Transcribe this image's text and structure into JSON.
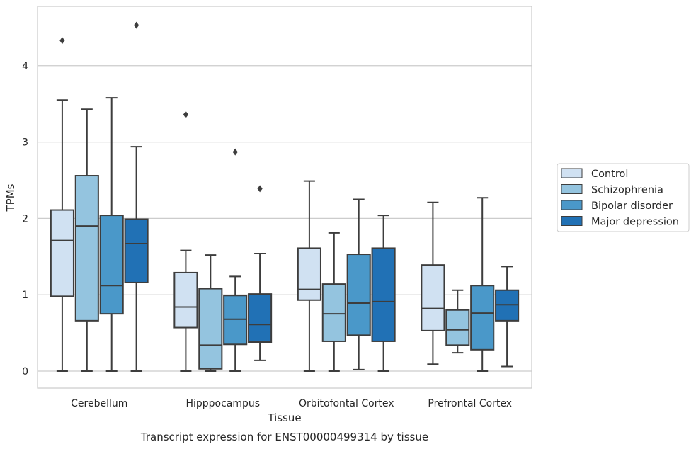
{
  "chart_data": {
    "type": "box",
    "title": "Transcript expression for ENST00000499314 by tissue",
    "xlabel": "Tissue",
    "ylabel": "TPMs",
    "ylim": [
      -0.22,
      4.8
    ],
    "yticks": [
      0,
      1,
      2,
      3,
      4
    ],
    "grid": "horizontal",
    "legend_position": "right",
    "categories": [
      "Cerebellum",
      "Hipppocampus",
      "Orbitofontal Cortex",
      "Prefrontal Cortex"
    ],
    "series": [
      {
        "name": "Control",
        "color": "#d0e1f2",
        "boxes": [
          {
            "whislo": 0.0,
            "q1": 0.98,
            "med": 1.71,
            "q3": 2.11,
            "whishi": 3.55,
            "fliers": [
              4.33
            ]
          },
          {
            "whislo": 0.0,
            "q1": 0.57,
            "med": 0.84,
            "q3": 1.29,
            "whishi": 1.58,
            "fliers": [
              3.36
            ]
          },
          {
            "whislo": 0.0,
            "q1": 0.93,
            "med": 1.07,
            "q3": 1.61,
            "whishi": 2.49,
            "fliers": []
          },
          {
            "whislo": 0.09,
            "q1": 0.53,
            "med": 0.82,
            "q3": 1.39,
            "whishi": 2.21,
            "fliers": []
          }
        ]
      },
      {
        "name": "Schizophrenia",
        "color": "#94c4df",
        "boxes": [
          {
            "whislo": 0.0,
            "q1": 0.66,
            "med": 1.9,
            "q3": 2.56,
            "whishi": 3.43,
            "fliers": []
          },
          {
            "whislo": 0.0,
            "q1": 0.03,
            "med": 0.34,
            "q3": 1.08,
            "whishi": 1.52,
            "fliers": []
          },
          {
            "whislo": 0.0,
            "q1": 0.39,
            "med": 0.75,
            "q3": 1.14,
            "whishi": 1.81,
            "fliers": []
          },
          {
            "whislo": 0.24,
            "q1": 0.34,
            "med": 0.54,
            "q3": 0.8,
            "whishi": 1.06,
            "fliers": []
          }
        ]
      },
      {
        "name": "Bipolar disorder",
        "color": "#4a98c9",
        "boxes": [
          {
            "whislo": 0.0,
            "q1": 0.75,
            "med": 1.12,
            "q3": 2.04,
            "whishi": 3.58,
            "fliers": []
          },
          {
            "whislo": 0.0,
            "q1": 0.35,
            "med": 0.68,
            "q3": 0.99,
            "whishi": 1.24,
            "fliers": [
              2.87
            ]
          },
          {
            "whislo": 0.02,
            "q1": 0.47,
            "med": 0.89,
            "q3": 1.53,
            "whishi": 2.25,
            "fliers": []
          },
          {
            "whislo": 0.0,
            "q1": 0.28,
            "med": 0.76,
            "q3": 1.12,
            "whishi": 2.27,
            "fliers": []
          }
        ]
      },
      {
        "name": "Major depression",
        "color": "#2171b5",
        "boxes": [
          {
            "whislo": 0.0,
            "q1": 1.16,
            "med": 1.67,
            "q3": 1.99,
            "whishi": 2.94,
            "fliers": [
              4.53
            ]
          },
          {
            "whislo": 0.14,
            "q1": 0.38,
            "med": 0.61,
            "q3": 1.01,
            "whishi": 1.54,
            "fliers": [
              2.39
            ]
          },
          {
            "whislo": 0.0,
            "q1": 0.39,
            "med": 0.91,
            "q3": 1.61,
            "whishi": 2.04,
            "fliers": []
          },
          {
            "whislo": 0.06,
            "q1": 0.66,
            "med": 0.87,
            "q3": 1.06,
            "whishi": 1.37,
            "fliers": []
          }
        ]
      }
    ]
  }
}
